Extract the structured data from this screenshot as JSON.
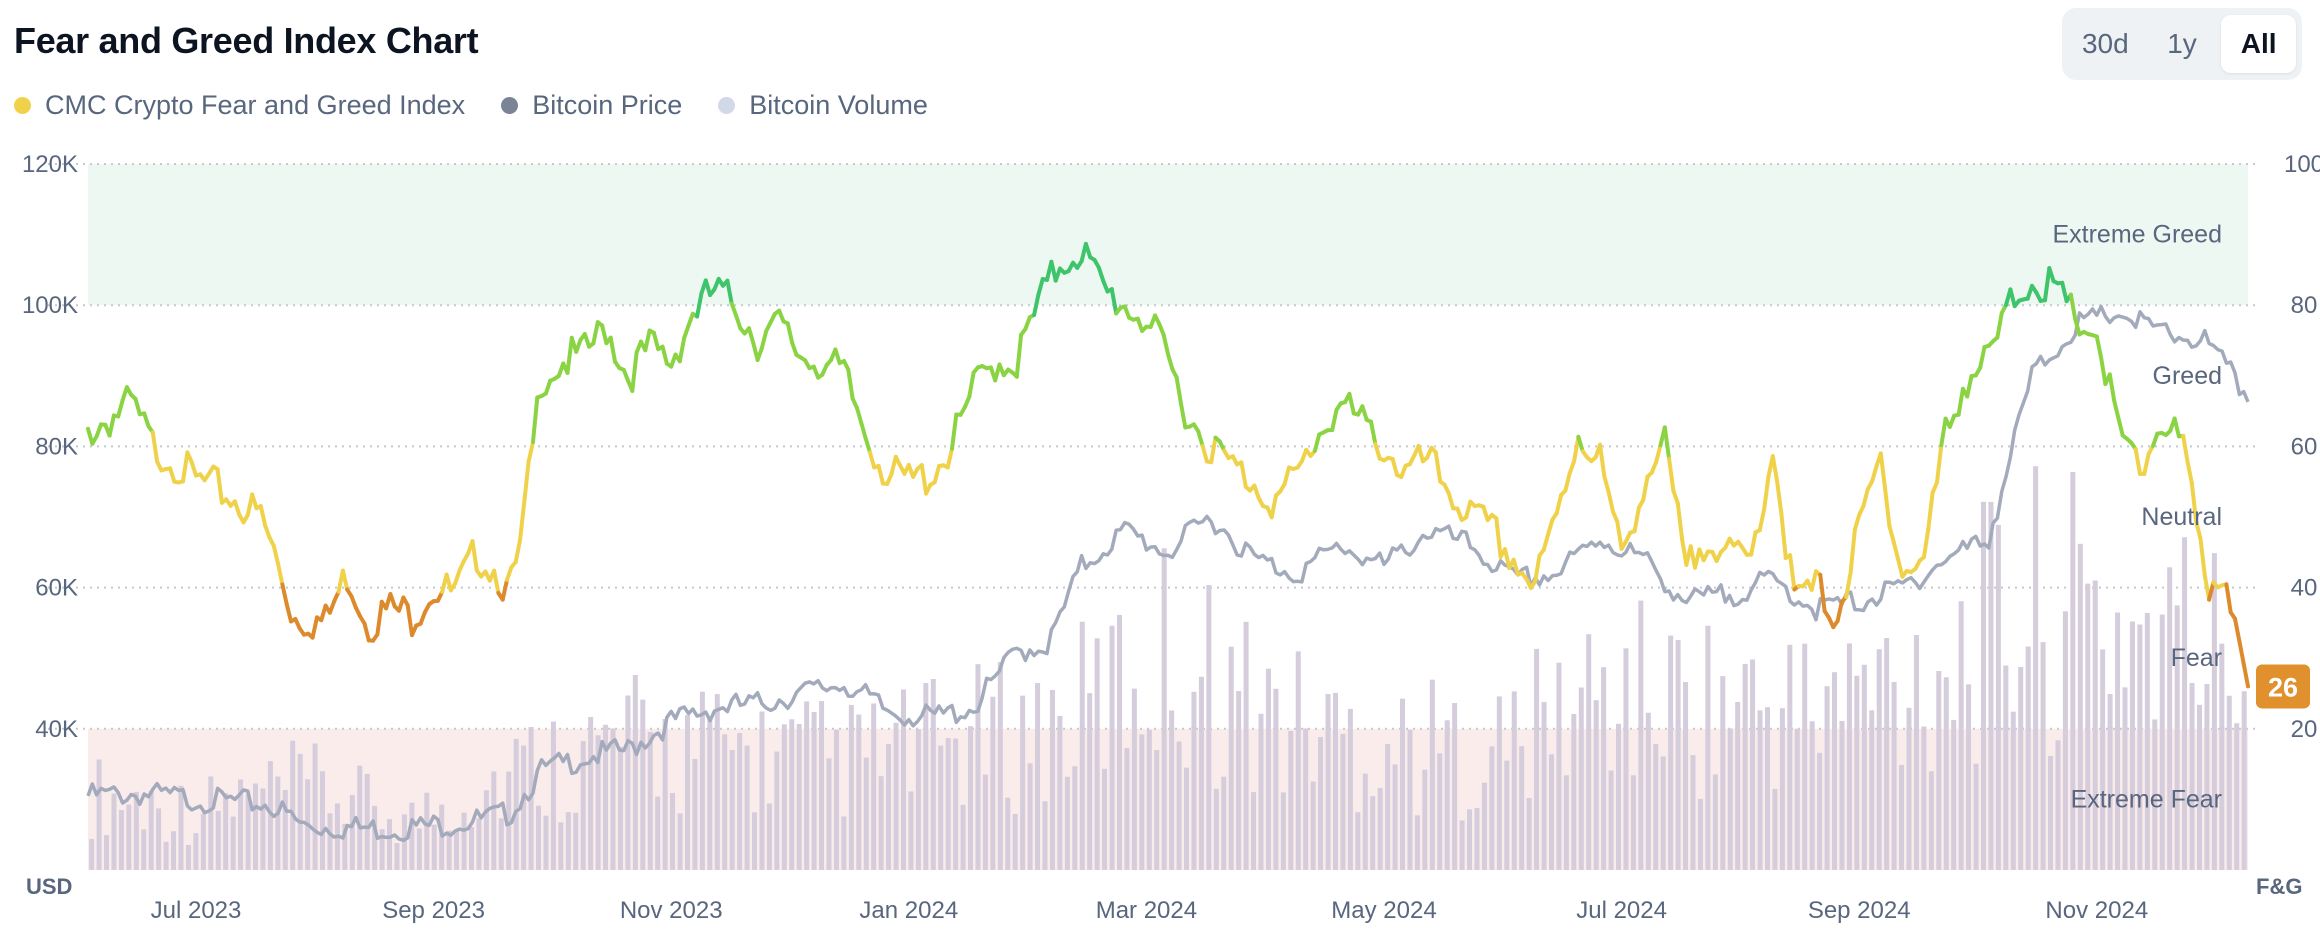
{
  "title": "Fear and Greed Index Chart",
  "range_buttons": [
    {
      "label": "30d",
      "active": false
    },
    {
      "label": "1y",
      "active": false
    },
    {
      "label": "All",
      "active": true
    }
  ],
  "legend": [
    {
      "label": "CMC Crypto Fear and Greed Index",
      "color": "#f0d24a"
    },
    {
      "label": "Bitcoin Price",
      "color": "#7a8496"
    },
    {
      "label": "Bitcoin Volume",
      "color": "#d2d8e8"
    }
  ],
  "colors": {
    "extreme_greed_band": "#eef8f2",
    "extreme_fear_band": "#fbecec",
    "greed": "#8ad444",
    "extreme_greed": "#3ec46a",
    "neutral": "#f0d24a",
    "fear": "#dd8a2c",
    "extreme_fear": "#e5533a",
    "price_line": "#a3aabb",
    "volume_bar": "#d5ccdc",
    "current_badge": "#e0902c"
  },
  "chart_data": {
    "type": "line",
    "title": "Fear and Greed Index Chart",
    "x_ticks": [
      "Jul 2023",
      "Sep 2023",
      "Nov 2023",
      "Jan 2024",
      "Mar 2024",
      "May 2024",
      "Jul 2024",
      "Sep 2024",
      "Nov 2024"
    ],
    "x_range": [
      0,
      20
    ],
    "left_axis": {
      "unit": "USD",
      "ticks": [
        "40K",
        "60K",
        "80K",
        "100K",
        "120K"
      ],
      "values": [
        40000,
        60000,
        80000,
        100000,
        120000
      ],
      "range": [
        20000,
        120000
      ]
    },
    "right_axis": {
      "unit": "F&G",
      "ticks": [
        "20",
        "40",
        "60",
        "80",
        "100"
      ],
      "values": [
        20,
        40,
        60,
        80,
        100
      ],
      "range": [
        0,
        100
      ]
    },
    "zones": [
      {
        "label": "Extreme Greed",
        "from": 80,
        "to": 100
      },
      {
        "label": "Greed",
        "from": 60,
        "to": 80
      },
      {
        "label": "Neutral",
        "from": 40,
        "to": 60
      },
      {
        "label": "Fear",
        "from": 20,
        "to": 40
      },
      {
        "label": "Extreme Fear",
        "from": 0,
        "to": 20
      }
    ],
    "current_value": "26",
    "series": [
      {
        "name": "CMC Crypto Fear and Greed Index",
        "axis": "right",
        "x": [
          0,
          0.2,
          0.4,
          0.6,
          0.8,
          1.0,
          1.2,
          1.4,
          1.6,
          1.7,
          1.9,
          2.2,
          2.4,
          2.6,
          2.8,
          3.0,
          3.2,
          3.4,
          3.6,
          3.8,
          3.9,
          4.0,
          4.2,
          4.4,
          4.6,
          4.8,
          5.0,
          5.2,
          5.4,
          5.6,
          5.8,
          6.0,
          6.2,
          6.4,
          6.6,
          6.8,
          7.0,
          7.2,
          7.4,
          7.6,
          7.8,
          8.0,
          8.2,
          8.4,
          8.6,
          8.8,
          9.0,
          9.2,
          9.4,
          9.6,
          9.8,
          10.0,
          10.2,
          10.4,
          10.6,
          10.8,
          11.0,
          11.2,
          11.4,
          11.6,
          11.8,
          12.0,
          12.2,
          12.4,
          12.6,
          12.8,
          13.0,
          13.2,
          13.4,
          13.6,
          13.8,
          14.0,
          14.2,
          14.4,
          14.6,
          14.8,
          15.0,
          15.2,
          15.4,
          15.6,
          15.8,
          16.0,
          16.2,
          16.4,
          16.6,
          16.8,
          17.0,
          17.2,
          17.4,
          17.6,
          17.8,
          18.0,
          18.2,
          18.4,
          18.6,
          18.8,
          19.0,
          19.2,
          19.4,
          19.6,
          19.8,
          20.0
        ],
        "values": [
          62,
          64,
          66,
          60,
          58,
          55,
          54,
          52,
          50,
          46,
          36,
          35,
          42,
          35,
          37,
          36,
          40,
          39,
          45,
          42,
          39,
          45,
          70,
          72,
          73,
          77,
          70,
          74,
          72,
          79,
          82,
          80,
          75,
          77,
          73,
          72,
          70,
          62,
          56,
          55,
          56,
          60,
          68,
          72,
          72,
          80,
          86,
          88,
          82,
          80,
          78,
          72,
          64,
          60,
          57,
          55,
          52,
          56,
          62,
          66,
          63,
          60,
          56,
          58,
          54,
          50,
          48,
          44,
          40,
          50,
          62,
          58,
          44,
          55,
          60,
          42,
          48,
          44,
          44,
          60,
          38,
          40,
          36,
          48,
          58,
          42,
          44,
          62,
          70,
          72,
          80,
          84,
          82,
          78,
          76,
          62,
          56,
          64,
          60,
          40,
          42,
          26
        ]
      },
      {
        "name": "Bitcoin Price",
        "axis": "left",
        "x": [
          0,
          0.5,
          1.0,
          1.5,
          1.7,
          2.0,
          2.4,
          2.8,
          3.2,
          3.6,
          3.9,
          4.2,
          4.6,
          5.0,
          5.4,
          5.8,
          6.2,
          6.6,
          7.0,
          7.4,
          7.8,
          8.2,
          8.6,
          8.9,
          9.2,
          9.6,
          10.0,
          10.4,
          10.8,
          11.2,
          11.6,
          12.0,
          12.4,
          12.8,
          13.2,
          13.6,
          14.0,
          14.4,
          14.8,
          15.2,
          15.6,
          16.0,
          16.4,
          16.8,
          17.2,
          17.6,
          18.0,
          18.4,
          18.8,
          19.2,
          19.6,
          20.0
        ],
        "values": [
          30500,
          30800,
          30000,
          29500,
          29200,
          26200,
          26000,
          25800,
          26300,
          27000,
          28000,
          34000,
          36000,
          37000,
          41000,
          43000,
          43500,
          45000,
          46500,
          42500,
          41500,
          43000,
          51000,
          52000,
          63000,
          68000,
          65000,
          70000,
          64000,
          62000,
          66000,
          63000,
          68000,
          66000,
          61000,
          62000,
          67000,
          64000,
          58000,
          59000,
          61000,
          57000,
          58000,
          60000,
          64000,
          67000,
          90000,
          97000,
          99000,
          96000,
          95000,
          87000
        ]
      },
      {
        "name": "Bitcoin Volume",
        "axis": "volume",
        "x": [
          0,
          1,
          2,
          3,
          4,
          5,
          6,
          7,
          8,
          9,
          10,
          11,
          12,
          13,
          14,
          15,
          16,
          17,
          18,
          19,
          20
        ],
        "values": [
          18,
          14,
          20,
          12,
          24,
          30,
          28,
          26,
          30,
          34,
          52,
          36,
          30,
          28,
          42,
          40,
          38,
          48,
          62,
          58,
          50
        ]
      }
    ]
  }
}
